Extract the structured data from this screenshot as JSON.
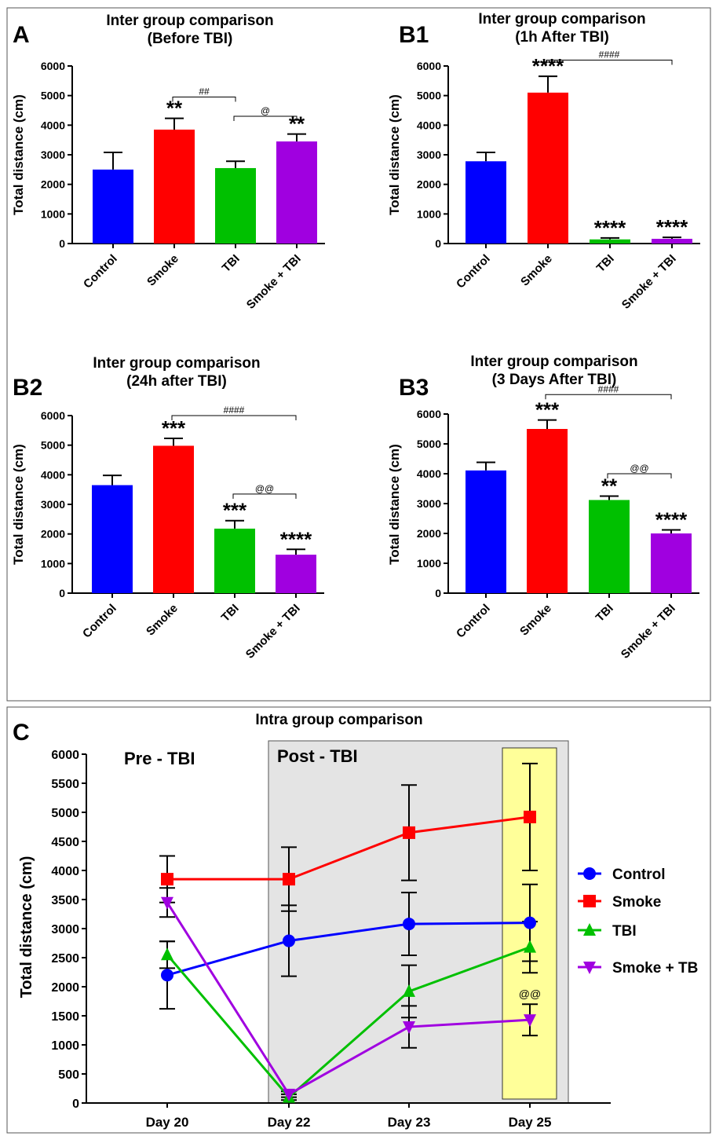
{
  "colors": {
    "control": "#0000ff",
    "smoke": "#ff0000",
    "tbi": "#00c000",
    "smoke_tbi": "#a000e0",
    "post_shade": "#e4e4e4",
    "highlight": "#ffff99"
  },
  "chart_data": [
    {
      "panel": "A",
      "type": "bar",
      "title": "Inter group comparison",
      "subtitle": "(Before TBI)",
      "ylabel": "Total distance (cm)",
      "ylim": [
        0,
        6000
      ],
      "yticks": [
        "0",
        "1000",
        "2000",
        "3000",
        "4000",
        "5000",
        "6000"
      ],
      "categories": [
        "Control",
        "Smoke",
        "TBI",
        "Smoke + TBI"
      ],
      "values": [
        2500,
        3850,
        2550,
        3450
      ],
      "errors": [
        580,
        380,
        230,
        250
      ],
      "stars": [
        "",
        "**",
        "",
        "**"
      ],
      "brackets": [
        {
          "label": "##",
          "from": 1,
          "to": 2,
          "y": 4950
        },
        {
          "label": "@",
          "from": 2,
          "to": 3,
          "y": 4300
        }
      ]
    },
    {
      "panel": "B1",
      "type": "bar",
      "title": "Inter group comparison",
      "subtitle": "(1h After TBI)",
      "ylabel": "Total distance (cm)",
      "ylim": [
        0,
        6000
      ],
      "yticks": [
        "0",
        "1000",
        "2000",
        "3000",
        "4000",
        "5000",
        "6000"
      ],
      "categories": [
        "Control",
        "Smoke",
        "TBI",
        "Smoke + TBI"
      ],
      "values": [
        2780,
        5100,
        140,
        160
      ],
      "errors": [
        300,
        550,
        50,
        50
      ],
      "stars": [
        "",
        "****",
        "****",
        "****"
      ],
      "brackets": [
        {
          "label": "####",
          "from": 1,
          "to": 3,
          "y": 6200
        }
      ]
    },
    {
      "panel": "B2",
      "type": "bar",
      "title": "Inter group comparison",
      "subtitle": "(24h after TBI)",
      "ylabel": "Total distance (cm)",
      "ylim": [
        0,
        6000
      ],
      "yticks": [
        "0",
        "1000",
        "2000",
        "3000",
        "4000",
        "5000",
        "6000"
      ],
      "categories": [
        "Control",
        "Smoke",
        "TBI",
        "Smoke + TBI"
      ],
      "values": [
        3650,
        4980,
        2180,
        1300
      ],
      "errors": [
        330,
        250,
        270,
        180
      ],
      "stars": [
        "",
        "***",
        "***",
        "****"
      ],
      "brackets": [
        {
          "label": "####",
          "from": 1,
          "to": 3,
          "y": 6000
        },
        {
          "label": "@@",
          "from": 2,
          "to": 3,
          "y": 3350
        }
      ]
    },
    {
      "panel": "B3",
      "type": "bar",
      "title": "Inter group comparison",
      "subtitle": "(3 Days After TBI)",
      "ylabel": "Total distance (cm)",
      "ylim": [
        0,
        6000
      ],
      "yticks": [
        "0",
        "1000",
        "2000",
        "3000",
        "4000",
        "5000",
        "6000"
      ],
      "categories": [
        "Control",
        "Smoke",
        "TBI",
        "Smoke + TBI"
      ],
      "values": [
        4110,
        5500,
        3120,
        2000
      ],
      "errors": [
        270,
        300,
        130,
        120
      ],
      "stars": [
        "",
        "***",
        "**",
        "****"
      ],
      "brackets": [
        {
          "label": "####",
          "from": 1,
          "to": 3,
          "y": 6650
        },
        {
          "label": "@@",
          "from": 2,
          "to": 3,
          "y": 4000
        }
      ]
    },
    {
      "panel": "C",
      "type": "line",
      "title": "Intra group comparison",
      "ylabel": "Total distance (cm)",
      "ylim": [
        0,
        6000
      ],
      "yticks": [
        "0",
        "500",
        "1000",
        "1500",
        "2000",
        "2500",
        "3000",
        "3500",
        "4000",
        "4500",
        "5000",
        "5500",
        "6000"
      ],
      "x": [
        "Day 20",
        "Day 22",
        "Day 23",
        "Day 25"
      ],
      "region_labels": {
        "pre": "Pre - TBI",
        "post": "Post - TBI"
      },
      "annotation": "@@",
      "series": [
        {
          "name": "Control",
          "marker": "circle",
          "values": [
            2200,
            2790,
            3080,
            3100
          ],
          "errors": [
            580,
            610,
            540,
            660
          ]
        },
        {
          "name": "Smoke",
          "marker": "square",
          "values": [
            3850,
            3850,
            4650,
            4920
          ],
          "errors": [
            400,
            550,
            820,
            920
          ]
        },
        {
          "name": "TBI",
          "marker": "triangle-up",
          "values": [
            2550,
            100,
            1920,
            2680
          ],
          "errors": [
            230,
            50,
            450,
            440
          ]
        },
        {
          "name": "Smoke + TB",
          "marker": "triangle-down",
          "values": [
            3450,
            150,
            1310,
            1430
          ],
          "errors": [
            250,
            50,
            360,
            270
          ]
        }
      ]
    }
  ]
}
